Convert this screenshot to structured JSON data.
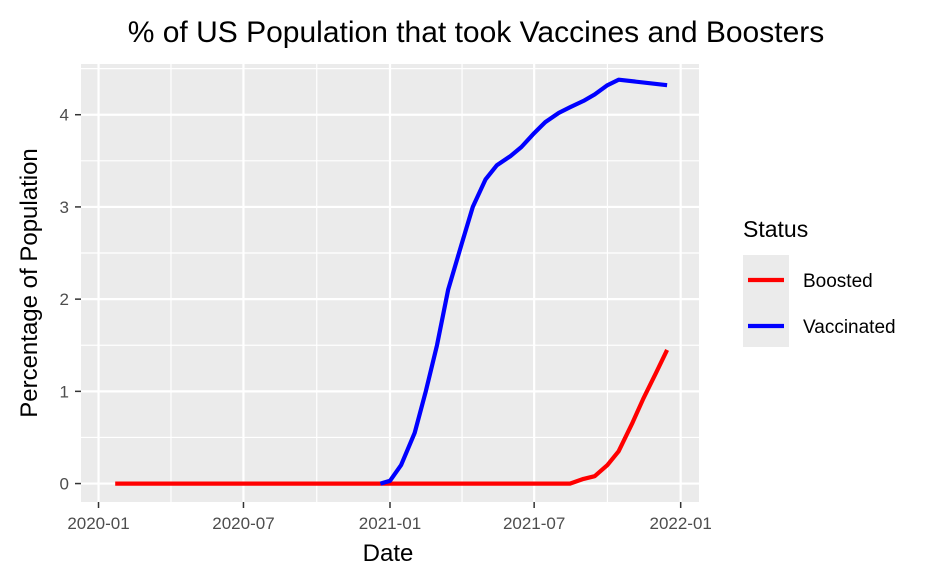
{
  "chart_data": {
    "type": "line",
    "title": "% of US Population that took Vaccines and Boosters",
    "xlabel": "Date",
    "ylabel": "Percentage of Population",
    "x_ticks": [
      "2020-01",
      "2020-07",
      "2021-01",
      "2021-07",
      "2022-01"
    ],
    "y_ticks": [
      0,
      1,
      2,
      3,
      4
    ],
    "xlim": [
      "2019-12-10",
      "2022-01-24"
    ],
    "ylim": [
      -0.2,
      4.55
    ],
    "grid": true,
    "legend_title": "Status",
    "legend_position": "right",
    "series": [
      {
        "name": "Boosted",
        "color": "#ff0000",
        "points": [
          [
            "2020-01-22",
            0
          ],
          [
            "2020-07-01",
            0
          ],
          [
            "2021-01-01",
            0
          ],
          [
            "2021-06-01",
            0
          ],
          [
            "2021-08-01",
            0
          ],
          [
            "2021-08-15",
            0.0
          ],
          [
            "2021-09-01",
            0.05
          ],
          [
            "2021-09-15",
            0.08
          ],
          [
            "2021-10-01",
            0.2
          ],
          [
            "2021-10-15",
            0.35
          ],
          [
            "2021-11-01",
            0.65
          ],
          [
            "2021-11-15",
            0.92
          ],
          [
            "2021-12-01",
            1.2
          ],
          [
            "2021-12-15",
            1.45
          ]
        ]
      },
      {
        "name": "Vaccinated",
        "color": "#0000ff",
        "points": [
          [
            "2020-12-20",
            0.0
          ],
          [
            "2021-01-01",
            0.03
          ],
          [
            "2021-01-15",
            0.2
          ],
          [
            "2021-02-01",
            0.55
          ],
          [
            "2021-02-15",
            1.0
          ],
          [
            "2021-03-01",
            1.5
          ],
          [
            "2021-03-15",
            2.1
          ],
          [
            "2021-04-01",
            2.6
          ],
          [
            "2021-04-15",
            3.0
          ],
          [
            "2021-05-01",
            3.3
          ],
          [
            "2021-05-15",
            3.45
          ],
          [
            "2021-06-01",
            3.55
          ],
          [
            "2021-06-15",
            3.65
          ],
          [
            "2021-07-01",
            3.8
          ],
          [
            "2021-07-15",
            3.92
          ],
          [
            "2021-08-01",
            4.02
          ],
          [
            "2021-08-15",
            4.08
          ],
          [
            "2021-09-01",
            4.15
          ],
          [
            "2021-09-15",
            4.22
          ],
          [
            "2021-10-01",
            4.32
          ],
          [
            "2021-10-15",
            4.38
          ],
          [
            "2021-12-15",
            4.32
          ]
        ]
      }
    ]
  }
}
